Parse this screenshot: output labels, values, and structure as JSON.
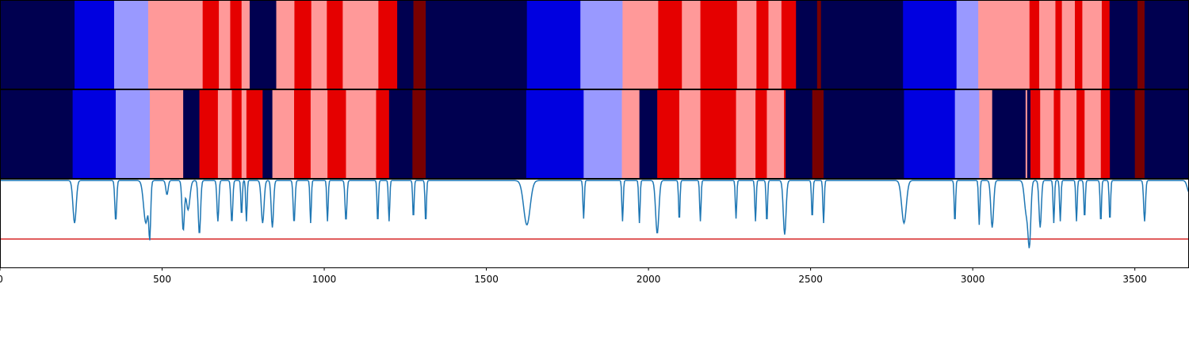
{
  "chart_data": [
    {
      "type": "heatmap",
      "title": "",
      "xlim": [
        0,
        3667
      ],
      "class_colors": [
        "#000050",
        "#0000e0",
        "#9999ff",
        "#ff9999",
        "#e50000",
        "#780000"
      ],
      "segments": [
        [
          0,
          230,
          0
        ],
        [
          230,
          352,
          1
        ],
        [
          352,
          457,
          2
        ],
        [
          457,
          625,
          3
        ],
        [
          625,
          675,
          4
        ],
        [
          675,
          710,
          3
        ],
        [
          710,
          745,
          4
        ],
        [
          745,
          770,
          3
        ],
        [
          770,
          852,
          0
        ],
        [
          852,
          908,
          3
        ],
        [
          908,
          960,
          4
        ],
        [
          960,
          1008,
          3
        ],
        [
          1008,
          1057,
          4
        ],
        [
          1057,
          1167,
          3
        ],
        [
          1167,
          1225,
          4
        ],
        [
          1225,
          1275,
          0
        ],
        [
          1275,
          1313,
          5
        ],
        [
          1313,
          1625,
          0
        ],
        [
          1625,
          1790,
          1
        ],
        [
          1790,
          1920,
          2
        ],
        [
          1920,
          2030,
          3
        ],
        [
          2030,
          2103,
          4
        ],
        [
          2103,
          2160,
          3
        ],
        [
          2160,
          2273,
          4
        ],
        [
          2273,
          2333,
          3
        ],
        [
          2333,
          2370,
          4
        ],
        [
          2370,
          2410,
          3
        ],
        [
          2410,
          2455,
          4
        ],
        [
          2455,
          2520,
          0
        ],
        [
          2520,
          2532,
          5
        ],
        [
          2532,
          2785,
          0
        ],
        [
          2785,
          2950,
          1
        ],
        [
          2950,
          3017,
          2
        ],
        [
          3017,
          3175,
          3
        ],
        [
          3175,
          3205,
          4
        ],
        [
          3205,
          3255,
          3
        ],
        [
          3255,
          3275,
          4
        ],
        [
          3275,
          3315,
          3
        ],
        [
          3315,
          3338,
          4
        ],
        [
          3338,
          3398,
          3
        ],
        [
          3398,
          3422,
          4
        ],
        [
          3422,
          3508,
          0
        ],
        [
          3508,
          3530,
          5
        ],
        [
          3530,
          3667,
          0
        ]
      ]
    },
    {
      "type": "heatmap",
      "title": "",
      "xlim": [
        0,
        3667
      ],
      "class_colors": [
        "#000050",
        "#0000e0",
        "#9999ff",
        "#ff9999",
        "#e50000",
        "#780000"
      ],
      "segments": [
        [
          0,
          224,
          0
        ],
        [
          224,
          357,
          1
        ],
        [
          357,
          462,
          2
        ],
        [
          462,
          565,
          3
        ],
        [
          565,
          615,
          0
        ],
        [
          615,
          672,
          4
        ],
        [
          672,
          715,
          3
        ],
        [
          715,
          745,
          4
        ],
        [
          745,
          760,
          3
        ],
        [
          760,
          810,
          4
        ],
        [
          810,
          840,
          0
        ],
        [
          840,
          907,
          3
        ],
        [
          907,
          958,
          4
        ],
        [
          958,
          1010,
          3
        ],
        [
          1010,
          1067,
          4
        ],
        [
          1067,
          1160,
          3
        ],
        [
          1160,
          1200,
          4
        ],
        [
          1200,
          1272,
          0
        ],
        [
          1272,
          1313,
          5
        ],
        [
          1313,
          1623,
          0
        ],
        [
          1623,
          1800,
          1
        ],
        [
          1800,
          1918,
          2
        ],
        [
          1918,
          1972,
          3
        ],
        [
          1972,
          2027,
          0
        ],
        [
          2027,
          2095,
          4
        ],
        [
          2095,
          2160,
          3
        ],
        [
          2160,
          2270,
          4
        ],
        [
          2270,
          2330,
          3
        ],
        [
          2330,
          2365,
          4
        ],
        [
          2365,
          2418,
          3
        ],
        [
          2418,
          2423,
          4
        ],
        [
          2423,
          2505,
          0
        ],
        [
          2505,
          2540,
          5
        ],
        [
          2540,
          2788,
          0
        ],
        [
          2788,
          2945,
          1
        ],
        [
          2945,
          3020,
          2
        ],
        [
          3020,
          3060,
          3
        ],
        [
          3060,
          3163,
          0
        ],
        [
          3163,
          3168,
          3
        ],
        [
          3168,
          3178,
          0
        ],
        [
          3178,
          3208,
          4
        ],
        [
          3208,
          3250,
          3
        ],
        [
          3250,
          3270,
          4
        ],
        [
          3270,
          3320,
          3
        ],
        [
          3320,
          3345,
          4
        ],
        [
          3345,
          3395,
          3
        ],
        [
          3395,
          3423,
          4
        ],
        [
          3423,
          3500,
          0
        ],
        [
          3500,
          3530,
          5
        ],
        [
          3530,
          3667,
          0
        ]
      ]
    },
    {
      "type": "line",
      "title": "",
      "xlabel": "",
      "ylabel": "",
      "xlim": [
        0,
        3667
      ],
      "ylim": [
        0,
        1
      ],
      "xticks": [
        0,
        500,
        1000,
        1500,
        2000,
        2500,
        3000,
        3500
      ],
      "threshold": 0.32,
      "line_color": "#1f77b4",
      "threshold_color": "#d62728",
      "baseline": 0.98,
      "dips": [
        [
          230,
          0.5,
          7
        ],
        [
          357,
          0.52,
          4
        ],
        [
          450,
          0.5,
          10
        ],
        [
          462,
          0.42,
          4
        ],
        [
          515,
          0.82,
          5
        ],
        [
          565,
          0.42,
          5
        ],
        [
          580,
          0.65,
          8
        ],
        [
          615,
          0.37,
          5
        ],
        [
          672,
          0.52,
          4
        ],
        [
          715,
          0.5,
          4
        ],
        [
          745,
          0.58,
          3
        ],
        [
          760,
          0.52,
          3
        ],
        [
          810,
          0.5,
          6
        ],
        [
          840,
          0.45,
          5
        ],
        [
          907,
          0.5,
          4
        ],
        [
          958,
          0.5,
          3
        ],
        [
          1010,
          0.52,
          3
        ],
        [
          1067,
          0.52,
          4
        ],
        [
          1165,
          0.5,
          3
        ],
        [
          1200,
          0.52,
          3
        ],
        [
          1275,
          0.55,
          3
        ],
        [
          1313,
          0.5,
          3
        ],
        [
          1625,
          0.48,
          14
        ],
        [
          1800,
          0.55,
          3
        ],
        [
          1920,
          0.52,
          3
        ],
        [
          1972,
          0.5,
          3
        ],
        [
          2027,
          0.38,
          7
        ],
        [
          2095,
          0.52,
          3
        ],
        [
          2160,
          0.52,
          3
        ],
        [
          2270,
          0.55,
          3
        ],
        [
          2330,
          0.52,
          3
        ],
        [
          2365,
          0.5,
          3
        ],
        [
          2420,
          0.37,
          6
        ],
        [
          2505,
          0.55,
          3
        ],
        [
          2540,
          0.5,
          3
        ],
        [
          2788,
          0.5,
          10
        ],
        [
          2945,
          0.5,
          3
        ],
        [
          3020,
          0.48,
          3
        ],
        [
          3060,
          0.45,
          6
        ],
        [
          3165,
          0.62,
          8
        ],
        [
          3175,
          0.3,
          6
        ],
        [
          3208,
          0.45,
          5
        ],
        [
          3250,
          0.5,
          3
        ],
        [
          3270,
          0.52,
          3
        ],
        [
          3320,
          0.52,
          3
        ],
        [
          3345,
          0.55,
          3
        ],
        [
          3395,
          0.5,
          3
        ],
        [
          3423,
          0.52,
          3
        ],
        [
          3530,
          0.52,
          4
        ],
        [
          3667,
          0.85,
          8
        ]
      ]
    }
  ]
}
